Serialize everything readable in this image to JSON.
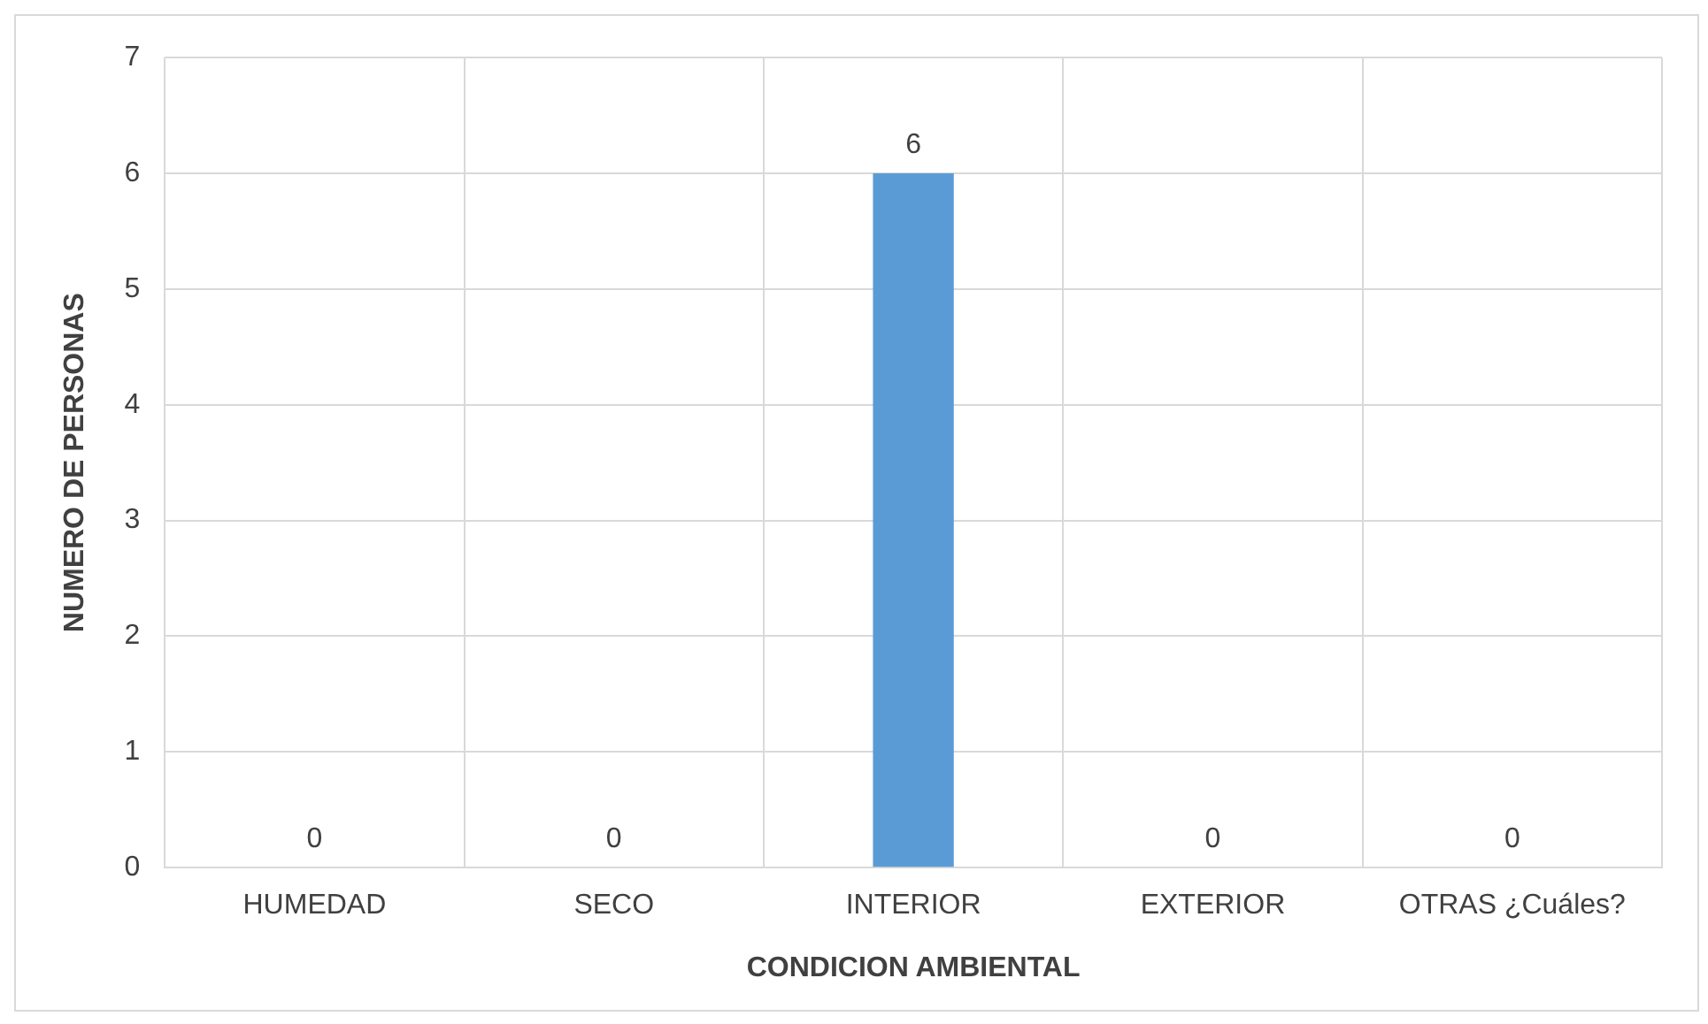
{
  "chart_data": {
    "type": "bar",
    "xlabel": "CONDICION AMBIENTAL",
    "ylabel": "NUMERO DE PERSONAS",
    "categories": [
      "HUMEDAD",
      "SECO",
      "INTERIOR",
      "EXTERIOR",
      "OTRAS ¿Cuáles?"
    ],
    "values": [
      0,
      0,
      6,
      0,
      0
    ],
    "color": "#5b9bd5",
    "ylim": [
      0,
      7
    ],
    "yticks": [
      0,
      1,
      2,
      3,
      4,
      5,
      6,
      7
    ],
    "grid": true,
    "data_labels": true
  }
}
